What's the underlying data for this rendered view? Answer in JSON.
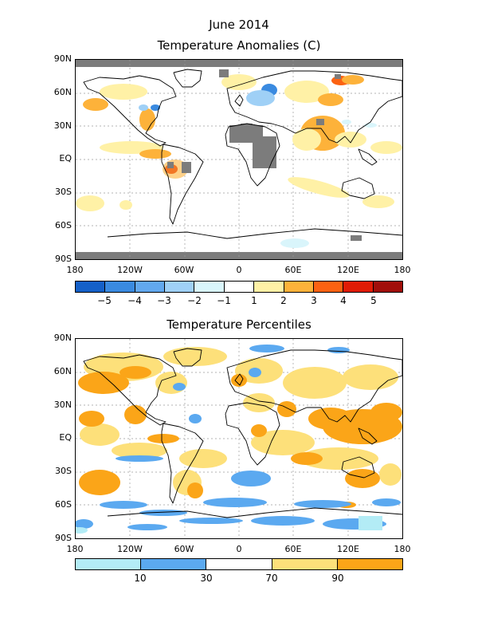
{
  "figure": {
    "title_line1": "June 2014",
    "title_line2": "Temperature Anomalies (C)",
    "title_panel2": "Temperature Percentiles"
  },
  "axes": {
    "lat_labels": [
      "90N",
      "60N",
      "30N",
      "EQ",
      "30S",
      "60S",
      "90S"
    ],
    "lon_labels": [
      "180",
      "120W",
      "60W",
      "0",
      "60E",
      "120E",
      "180"
    ]
  },
  "anomaly_colorbar": {
    "colors": [
      "#1560c8",
      "#3a8ae0",
      "#62a8ee",
      "#9fd0f6",
      "#d9f5fb",
      "#ffffff",
      "#fff1a6",
      "#fdb23a",
      "#fc6212",
      "#e01c06",
      "#a10f0a"
    ],
    "labels": [
      "−5",
      "−4",
      "−3",
      "−2",
      "−1",
      "1",
      "2",
      "3",
      "4",
      "5"
    ]
  },
  "percentile_colorbar": {
    "colors": [
      "#b3ecf6",
      "#5ba9f0",
      "#ffffff",
      "#fde07a",
      "#fba518"
    ],
    "labels": [
      "10",
      "30",
      "70",
      "90"
    ]
  },
  "legend_colors": {
    "missing_data": "#7c7c7c",
    "warm_moderate": "#fdb23a",
    "warm_light": "#fff1a6",
    "cool_light": "#9fd0f6",
    "cool_strong": "#1560c8",
    "pct_above_90": "#fba518",
    "pct_70_90": "#fde07a",
    "pct_10_30": "#5ba9f0",
    "pct_below_10": "#b3ecf6"
  }
}
